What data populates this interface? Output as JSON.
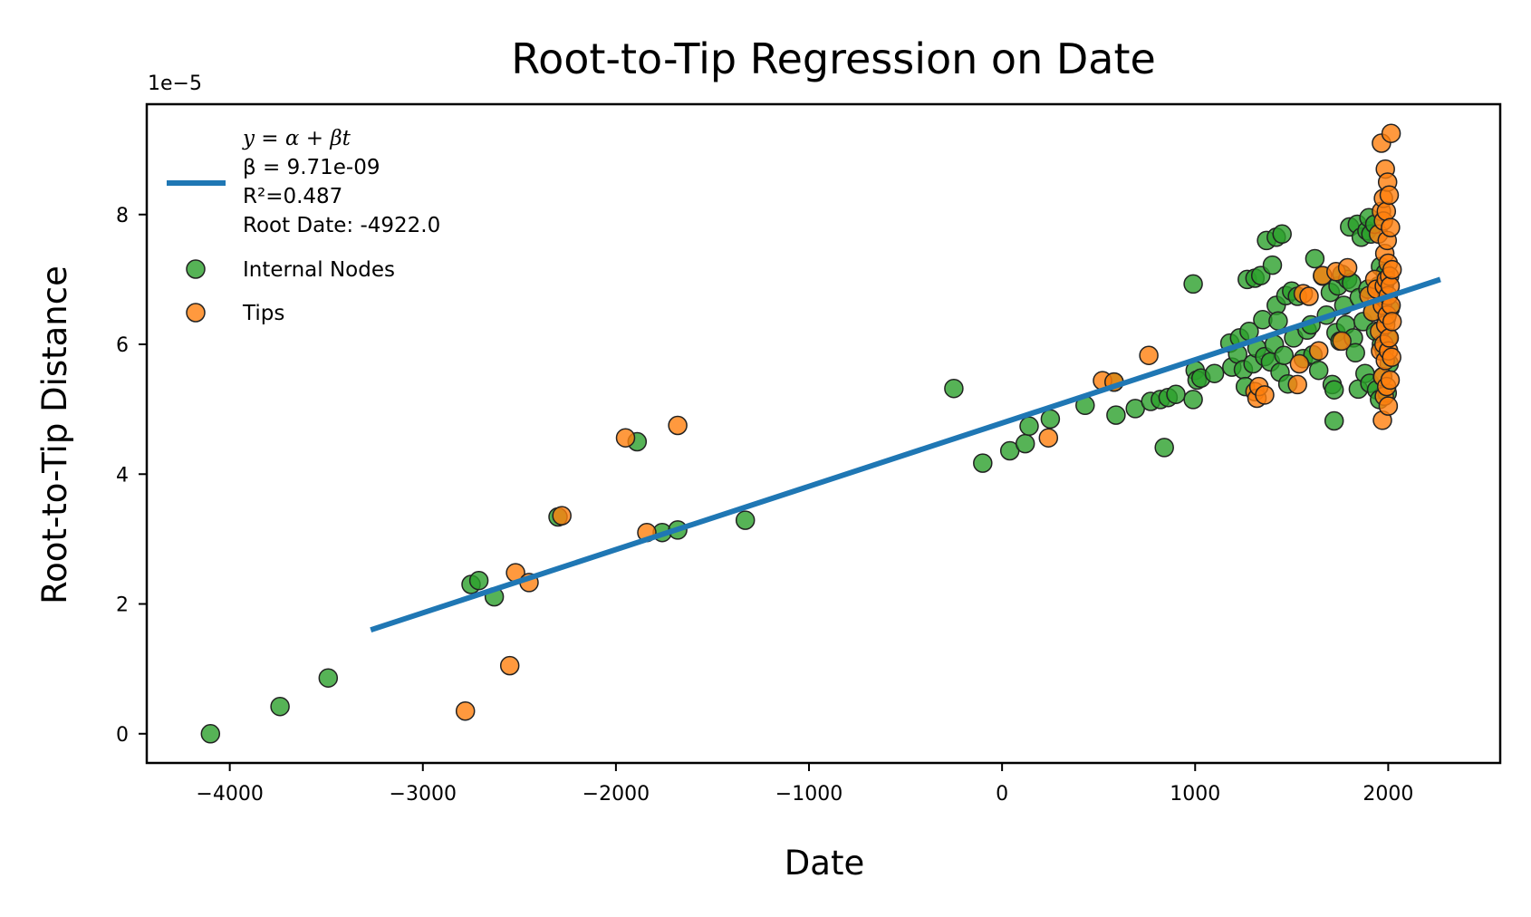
{
  "chart_data": {
    "type": "scatter",
    "title": "Root-to-Tip Regression on Date",
    "xlabel": "Date",
    "ylabel": "Root-to-Tip Distance",
    "y_offset_text": "1e−5",
    "xlim": [
      -4430,
      2580
    ],
    "ylim": [
      -0.45,
      9.7
    ],
    "x_ticks": [
      -4000,
      -3000,
      -2000,
      -1000,
      0,
      1000,
      2000
    ],
    "x_tick_labels": [
      "−4000",
      "−3000",
      "−2000",
      "−1000",
      "0",
      "1000",
      "2000"
    ],
    "y_ticks": [
      0,
      2,
      4,
      6,
      8
    ],
    "y_tick_labels": [
      "0",
      "2",
      "4",
      "6",
      "8"
    ],
    "grid": false,
    "legend": {
      "placement": "top-left",
      "fit_lines": [
        "y = α + βt",
        "β = 9.71e-09",
        "R²=0.487",
        "Root Date: -4922.0"
      ],
      "internal_label": "Internal Nodes",
      "tips_label": "Tips"
    },
    "fit_line": {
      "color": "#1f77b4",
      "x": [
        -3270,
        2270
      ],
      "y": [
        1.6,
        7.0
      ]
    },
    "series": [
      {
        "name": "Internal Nodes",
        "color": "#2ca02c",
        "points": [
          [
            -4100,
            0.0
          ],
          [
            -3740,
            0.42
          ],
          [
            -3490,
            0.86
          ],
          [
            -2750,
            2.3
          ],
          [
            -2710,
            2.36
          ],
          [
            -2630,
            2.11
          ],
          [
            -2300,
            3.34
          ],
          [
            -1890,
            4.5
          ],
          [
            -1760,
            3.1
          ],
          [
            -1680,
            3.14
          ],
          [
            -1330,
            3.29
          ],
          [
            -250,
            5.32
          ],
          [
            -100,
            4.17
          ],
          [
            40,
            4.36
          ],
          [
            120,
            4.47
          ],
          [
            140,
            4.74
          ],
          [
            250,
            4.85
          ],
          [
            430,
            5.06
          ],
          [
            580,
            5.42
          ],
          [
            590,
            4.91
          ],
          [
            690,
            5.01
          ],
          [
            770,
            5.12
          ],
          [
            820,
            5.15
          ],
          [
            840,
            4.41
          ],
          [
            860,
            5.18
          ],
          [
            900,
            5.23
          ],
          [
            990,
            5.15
          ],
          [
            990,
            6.93
          ],
          [
            1000,
            5.6
          ],
          [
            1010,
            5.45
          ],
          [
            1030,
            5.48
          ],
          [
            1100,
            5.55
          ],
          [
            1180,
            6.02
          ],
          [
            1190,
            5.65
          ],
          [
            1220,
            5.85
          ],
          [
            1230,
            6.1
          ],
          [
            1250,
            5.61
          ],
          [
            1260,
            5.35
          ],
          [
            1270,
            7.0
          ],
          [
            1280,
            6.2
          ],
          [
            1300,
            5.7
          ],
          [
            1310,
            7.02
          ],
          [
            1320,
            5.94
          ],
          [
            1340,
            7.06
          ],
          [
            1350,
            6.38
          ],
          [
            1360,
            5.81
          ],
          [
            1370,
            7.6
          ],
          [
            1390,
            5.73
          ],
          [
            1400,
            7.22
          ],
          [
            1410,
            6.0
          ],
          [
            1420,
            7.65
          ],
          [
            1420,
            6.6
          ],
          [
            1430,
            6.36
          ],
          [
            1440,
            5.57
          ],
          [
            1450,
            7.7
          ],
          [
            1460,
            5.83
          ],
          [
            1470,
            6.75
          ],
          [
            1480,
            5.39
          ],
          [
            1500,
            6.82
          ],
          [
            1510,
            6.1
          ],
          [
            1530,
            6.74
          ],
          [
            1560,
            5.78
          ],
          [
            1580,
            6.22
          ],
          [
            1600,
            6.3
          ],
          [
            1610,
            5.84
          ],
          [
            1620,
            7.32
          ],
          [
            1640,
            5.6
          ],
          [
            1660,
            7.05
          ],
          [
            1680,
            6.45
          ],
          [
            1700,
            6.8
          ],
          [
            1710,
            5.38
          ],
          [
            1720,
            4.82
          ],
          [
            1720,
            5.3
          ],
          [
            1730,
            6.18
          ],
          [
            1740,
            6.9
          ],
          [
            1750,
            6.05
          ],
          [
            1760,
            7.08
          ],
          [
            1770,
            6.6
          ],
          [
            1780,
            6.3
          ],
          [
            1790,
            7.0
          ],
          [
            1800,
            7.81
          ],
          [
            1810,
            6.95
          ],
          [
            1820,
            6.1
          ],
          [
            1830,
            5.87
          ],
          [
            1840,
            7.85
          ],
          [
            1845,
            5.31
          ],
          [
            1850,
            6.72
          ],
          [
            1860,
            7.65
          ],
          [
            1870,
            6.35
          ],
          [
            1880,
            5.55
          ],
          [
            1890,
            7.75
          ],
          [
            1895,
            6.85
          ],
          [
            1900,
            7.95
          ],
          [
            1905,
            5.4
          ],
          [
            1910,
            7.7
          ],
          [
            1920,
            6.5
          ],
          [
            1930,
            7.85
          ],
          [
            1935,
            6.2
          ],
          [
            1940,
            5.3
          ],
          [
            1950,
            6.9
          ],
          [
            1955,
            5.15
          ],
          [
            1960,
            7.2
          ],
          [
            1965,
            6.0
          ],
          [
            1970,
            5.5
          ],
          [
            1975,
            6.75
          ],
          [
            1980,
            5.9
          ],
          [
            1985,
            7.1
          ],
          [
            1990,
            6.4
          ],
          [
            1995,
            5.25
          ],
          [
            2000,
            6.1
          ],
          [
            2005,
            5.7
          ],
          [
            2010,
            6.55
          ]
        ]
      },
      {
        "name": "Tips",
        "color": "#ff7f0e",
        "points": [
          [
            -2780,
            0.35
          ],
          [
            -2550,
            1.05
          ],
          [
            -2520,
            2.48
          ],
          [
            -2450,
            2.33
          ],
          [
            -2280,
            3.36
          ],
          [
            -1950,
            4.56
          ],
          [
            -1840,
            3.1
          ],
          [
            -1680,
            4.75
          ],
          [
            240,
            4.56
          ],
          [
            520,
            5.44
          ],
          [
            580,
            5.42
          ],
          [
            760,
            5.83
          ],
          [
            1310,
            5.27
          ],
          [
            1320,
            5.17
          ],
          [
            1330,
            5.35
          ],
          [
            1360,
            5.22
          ],
          [
            1530,
            5.38
          ],
          [
            1540,
            5.7
          ],
          [
            1560,
            6.78
          ],
          [
            1590,
            6.74
          ],
          [
            1640,
            5.9
          ],
          [
            1660,
            7.06
          ],
          [
            1730,
            7.12
          ],
          [
            1760,
            6.05
          ],
          [
            1790,
            7.18
          ],
          [
            1900,
            6.75
          ],
          [
            1920,
            6.5
          ],
          [
            1930,
            7.0
          ],
          [
            1940,
            6.85
          ],
          [
            1950,
            7.7
          ],
          [
            1955,
            6.2
          ],
          [
            1960,
            5.9
          ],
          [
            1965,
            8.05
          ],
          [
            1965,
            9.1
          ],
          [
            1970,
            4.83
          ],
          [
            1970,
            6.6
          ],
          [
            1972,
            5.5
          ],
          [
            1975,
            7.9
          ],
          [
            1975,
            8.25
          ],
          [
            1978,
            6.0
          ],
          [
            1980,
            5.2
          ],
          [
            1980,
            6.9
          ],
          [
            1982,
            7.4
          ],
          [
            1985,
            8.7
          ],
          [
            1985,
            5.75
          ],
          [
            1987,
            6.3
          ],
          [
            1990,
            7.0
          ],
          [
            1990,
            8.05
          ],
          [
            1992,
            5.35
          ],
          [
            1995,
            6.45
          ],
          [
            1995,
            7.6
          ],
          [
            1997,
            8.5
          ],
          [
            2000,
            5.05
          ],
          [
            2000,
            6.75
          ],
          [
            2000,
            7.25
          ],
          [
            2002,
            5.9
          ],
          [
            2005,
            8.3
          ],
          [
            2005,
            6.1
          ],
          [
            2007,
            7.05
          ],
          [
            2010,
            5.45
          ],
          [
            2010,
            6.9
          ],
          [
            2012,
            7.8
          ],
          [
            2015,
            9.25
          ],
          [
            2015,
            6.6
          ],
          [
            2018,
            5.8
          ],
          [
            2020,
            7.15
          ],
          [
            2020,
            6.35
          ]
        ]
      }
    ]
  }
}
